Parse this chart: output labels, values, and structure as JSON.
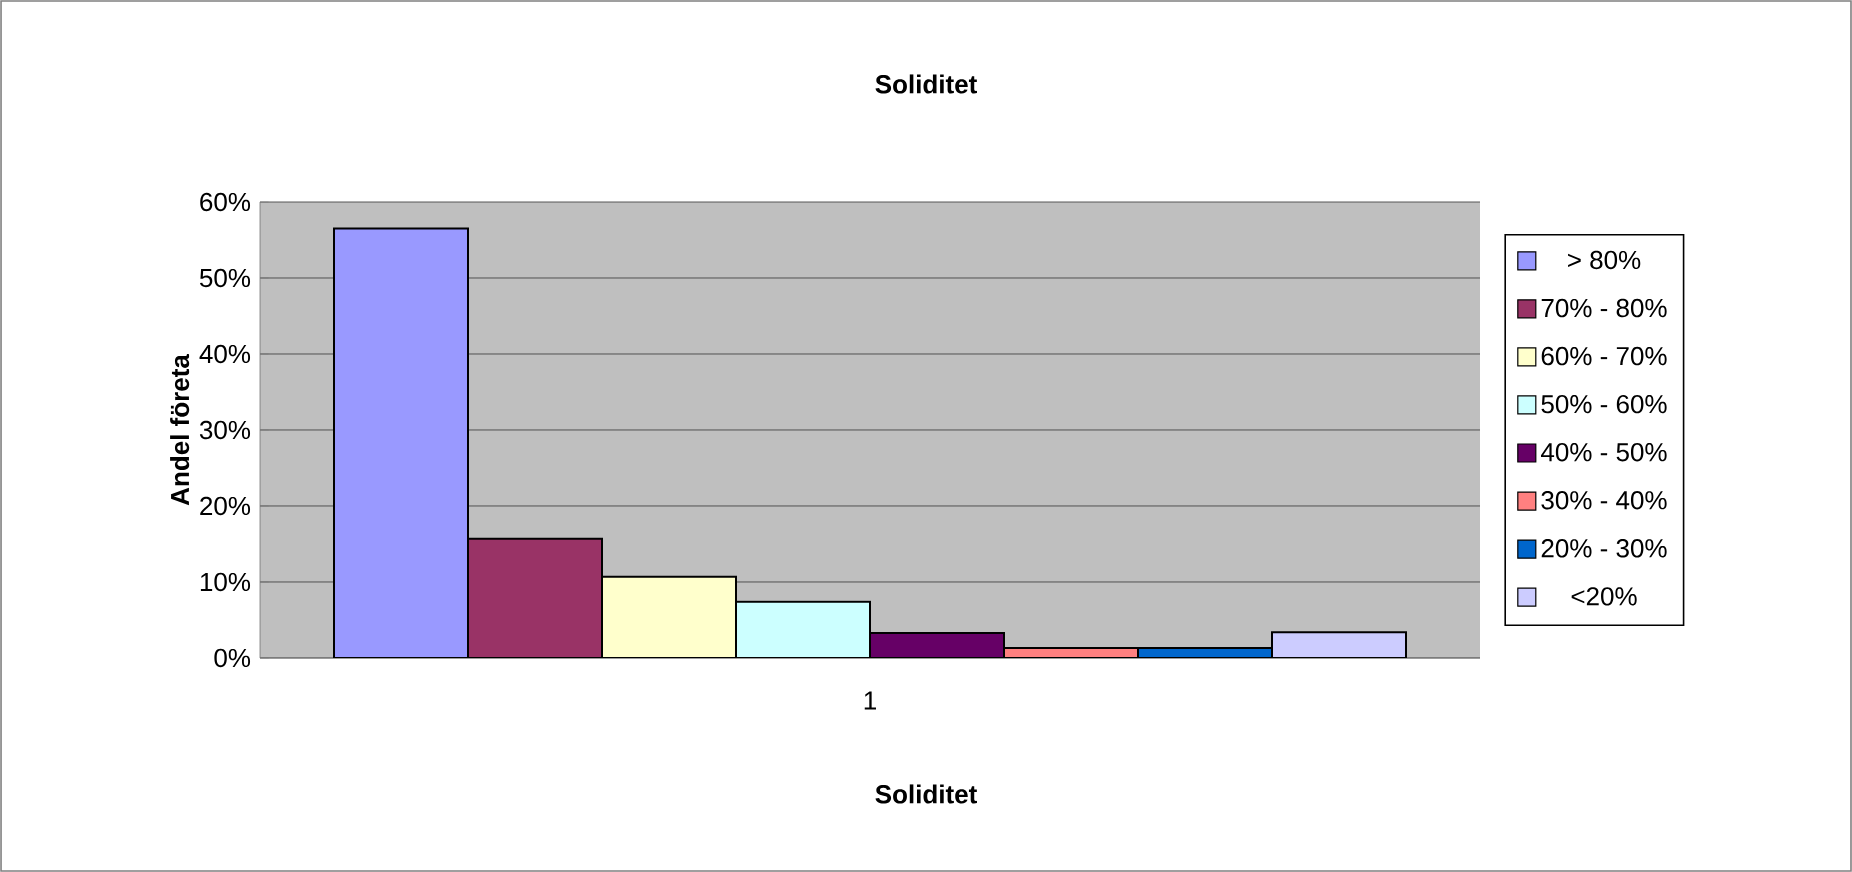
{
  "chart_data": {
    "type": "bar",
    "title": "Soliditet",
    "xlabel": "Soliditet",
    "ylabel": "Andel företa",
    "categories": [
      "1"
    ],
    "series": [
      {
        "name": "> 80%",
        "color": "#9999ff",
        "values": [
          56.5
        ]
      },
      {
        "name": "70% - 80%",
        "color": "#993366",
        "values": [
          15.7
        ]
      },
      {
        "name": "60% - 70%",
        "color": "#ffffcc",
        "values": [
          10.7
        ]
      },
      {
        "name": "50% - 60%",
        "color": "#ccffff",
        "values": [
          7.4
        ]
      },
      {
        "name": "40% - 50%",
        "color": "#660066",
        "values": [
          3.3
        ]
      },
      {
        "name": "30% - 40%",
        "color": "#ff8080",
        "values": [
          1.3
        ]
      },
      {
        "name": "20% - 30%",
        "color": "#0066cc",
        "values": [
          1.3
        ]
      },
      {
        "name": "<20%",
        "color": "#ccccff",
        "values": [
          3.4
        ]
      }
    ],
    "ylim": [
      0,
      60
    ],
    "yticks": [
      {
        "value": 0,
        "label": "0%"
      },
      {
        "value": 10,
        "label": "10%"
      },
      {
        "value": 20,
        "label": "20%"
      },
      {
        "value": 30,
        "label": "30%"
      },
      {
        "value": 40,
        "label": "40%"
      },
      {
        "value": 50,
        "label": "50%"
      },
      {
        "value": 60,
        "label": "60%"
      }
    ],
    "grid": "y",
    "legend": "right"
  }
}
